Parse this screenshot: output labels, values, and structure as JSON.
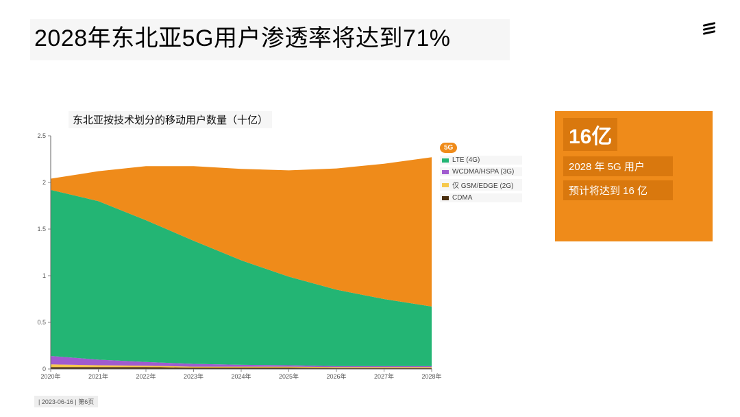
{
  "title": "2028年东北亚5G用户渗透率将达到71%",
  "chart": {
    "type": "stacked-area",
    "title": "东北亚按技术划分的移动用户数量（十亿）",
    "categories": [
      "2020年",
      "2021年",
      "2022年",
      "2023年",
      "2024年",
      "2025年",
      "2026年",
      "2027年",
      "2028年"
    ],
    "ylim": [
      0,
      2.5
    ],
    "ytick_step": 0.5,
    "yticks": [
      "0",
      "0.5",
      "1",
      "1.5",
      "2",
      "2.5"
    ],
    "background_color": "#ffffff",
    "axis_color": "#555555",
    "series": [
      {
        "name": "CDMA",
        "color": "#4a2f0e",
        "values": [
          0.02,
          0.02,
          0.02,
          0.015,
          0.015,
          0.015,
          0.01,
          0.01,
          0.01
        ]
      },
      {
        "name": "仅 GSM/EDGE (2G)",
        "color": "#f6c84c",
        "values": [
          0.03,
          0.02,
          0.015,
          0.01,
          0.01,
          0.01,
          0.01,
          0.01,
          0.01
        ]
      },
      {
        "name": "WCDMA/HSPA (3G)",
        "color": "#a05bcf",
        "values": [
          0.09,
          0.06,
          0.04,
          0.03,
          0.02,
          0.015,
          0.01,
          0.01,
          0.01
        ]
      },
      {
        "name": "LTE (4G)",
        "color": "#23b574",
        "values": [
          1.78,
          1.7,
          1.52,
          1.32,
          1.12,
          0.95,
          0.82,
          0.72,
          0.64
        ]
      },
      {
        "name": "5G",
        "color": "#ef8b1a",
        "values": [
          0.12,
          0.32,
          0.58,
          0.8,
          0.98,
          1.14,
          1.3,
          1.45,
          1.6
        ]
      }
    ],
    "legend_order": [
      "5G",
      "LTE (4G)",
      "WCDMA/HSPA (3G)",
      "仅 GSM/EDGE (2G)",
      "CDMA"
    ]
  },
  "callout": {
    "big": "16亿",
    "line1": "2028 年 5G 用户",
    "line2": "预计将达到 16 亿",
    "bg": "#ef8b1a",
    "highlight_bg": "#d9780e"
  },
  "footer": "| 2023-06-16 | 第6页",
  "label_fontsize": 9,
  "title_fontsize": 34
}
